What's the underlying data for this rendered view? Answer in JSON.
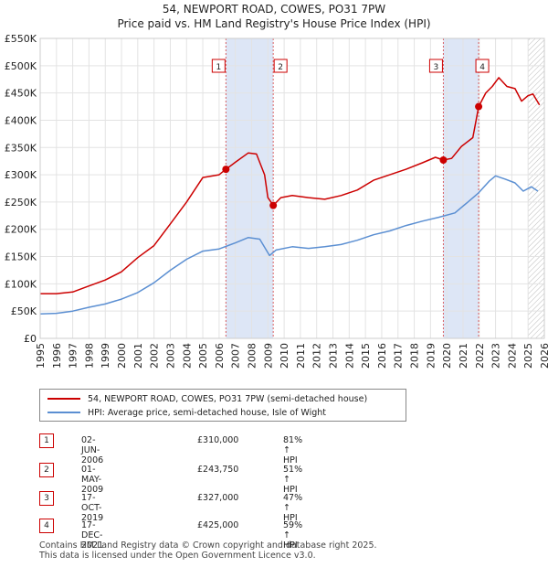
{
  "title": "54, NEWPORT ROAD, COWES, PO31 7PW",
  "subtitle": "Price paid vs. HM Land Registry's House Price Index (HPI)",
  "chart_data": {
    "type": "line",
    "title": "54, NEWPORT ROAD, COWES, PO31 7PW",
    "subtitle": "Price paid vs. HM Land Registry's House Price Index (HPI)",
    "xlim": [
      1995,
      2026
    ],
    "ylim": [
      0,
      550000
    ],
    "yticks": [
      0,
      50000,
      100000,
      150000,
      200000,
      250000,
      300000,
      350000,
      400000,
      450000,
      500000,
      550000
    ],
    "ytick_labels": [
      "£0",
      "£50K",
      "£100K",
      "£150K",
      "£200K",
      "£250K",
      "£300K",
      "£350K",
      "£400K",
      "£450K",
      "£500K",
      "£550K"
    ],
    "xticks": [
      1995,
      1996,
      1997,
      1998,
      1999,
      2000,
      2001,
      2002,
      2003,
      2004,
      2005,
      2006,
      2007,
      2008,
      2009,
      2010,
      2011,
      2012,
      2013,
      2014,
      2015,
      2016,
      2017,
      2018,
      2019,
      2020,
      2021,
      2022,
      2023,
      2024,
      2025,
      2026
    ],
    "grid": true,
    "series": [
      {
        "name": "54, NEWPORT ROAD, COWES, PO31 7PW (semi-detached house)",
        "color": "#cc0000",
        "points": [
          [
            1995.0,
            82000
          ],
          [
            1996.0,
            82000
          ],
          [
            1997.0,
            85000
          ],
          [
            1998.0,
            96000
          ],
          [
            1999.0,
            107000
          ],
          [
            2000.0,
            122000
          ],
          [
            2001.0,
            148000
          ],
          [
            2002.0,
            170000
          ],
          [
            2003.0,
            210000
          ],
          [
            2004.0,
            250000
          ],
          [
            2005.0,
            295000
          ],
          [
            2006.0,
            300000
          ],
          [
            2006.42,
            310000
          ],
          [
            2007.0,
            323000
          ],
          [
            2007.8,
            340000
          ],
          [
            2008.3,
            338000
          ],
          [
            2008.8,
            300000
          ],
          [
            2009.0,
            258000
          ],
          [
            2009.33,
            243750
          ],
          [
            2009.8,
            258000
          ],
          [
            2010.5,
            262000
          ],
          [
            2011.5,
            258000
          ],
          [
            2012.5,
            255000
          ],
          [
            2013.5,
            262000
          ],
          [
            2014.5,
            272000
          ],
          [
            2015.5,
            290000
          ],
          [
            2016.5,
            300000
          ],
          [
            2017.5,
            310000
          ],
          [
            2018.5,
            322000
          ],
          [
            2019.3,
            332000
          ],
          [
            2019.79,
            327000
          ],
          [
            2020.3,
            330000
          ],
          [
            2020.9,
            352000
          ],
          [
            2021.6,
            368000
          ],
          [
            2021.96,
            425000
          ],
          [
            2022.4,
            450000
          ],
          [
            2022.8,
            462000
          ],
          [
            2023.2,
            478000
          ],
          [
            2023.7,
            462000
          ],
          [
            2024.2,
            458000
          ],
          [
            2024.6,
            435000
          ],
          [
            2025.0,
            445000
          ],
          [
            2025.3,
            448000
          ],
          [
            2025.7,
            428000
          ]
        ]
      },
      {
        "name": "HPI: Average price, semi-detached house, Isle of Wight",
        "color": "#5b8fd2",
        "points": [
          [
            1995.0,
            45000
          ],
          [
            1996.0,
            46000
          ],
          [
            1997.0,
            50000
          ],
          [
            1998.0,
            57000
          ],
          [
            1999.0,
            63000
          ],
          [
            2000.0,
            72000
          ],
          [
            2001.0,
            84000
          ],
          [
            2002.0,
            102000
          ],
          [
            2003.0,
            125000
          ],
          [
            2004.0,
            145000
          ],
          [
            2005.0,
            160000
          ],
          [
            2006.0,
            164000
          ],
          [
            2007.0,
            175000
          ],
          [
            2007.8,
            185000
          ],
          [
            2008.5,
            182000
          ],
          [
            2009.1,
            152000
          ],
          [
            2009.5,
            162000
          ],
          [
            2010.5,
            168000
          ],
          [
            2011.5,
            165000
          ],
          [
            2012.5,
            168000
          ],
          [
            2013.5,
            172000
          ],
          [
            2014.5,
            180000
          ],
          [
            2015.5,
            190000
          ],
          [
            2016.5,
            197000
          ],
          [
            2017.5,
            207000
          ],
          [
            2018.5,
            215000
          ],
          [
            2019.5,
            222000
          ],
          [
            2020.5,
            230000
          ],
          [
            2021.3,
            250000
          ],
          [
            2021.96,
            267000
          ],
          [
            2022.6,
            288000
          ],
          [
            2023.0,
            298000
          ],
          [
            2023.6,
            292000
          ],
          [
            2024.2,
            285000
          ],
          [
            2024.7,
            270000
          ],
          [
            2025.2,
            278000
          ],
          [
            2025.6,
            270000
          ]
        ]
      }
    ],
    "sales": [
      {
        "label": "1",
        "date": "02-JUN-2006",
        "x": 2006.42,
        "price": 310000,
        "price_text": "£310,000",
        "hpi": "81% ↑ HPI"
      },
      {
        "label": "2",
        "date": "01-MAY-2009",
        "x": 2009.33,
        "price": 243750,
        "price_text": "£243,750",
        "hpi": "51% ↑ HPI"
      },
      {
        "label": "3",
        "date": "17-OCT-2019",
        "x": 2019.79,
        "price": 327000,
        "price_text": "£327,000",
        "hpi": "47% ↑ HPI"
      },
      {
        "label": "4",
        "date": "17-DEC-2021",
        "x": 2021.96,
        "price": 425000,
        "price_text": "£425,000",
        "hpi": "59% ↑ HPI"
      }
    ],
    "shaded_periods": [
      [
        2006.42,
        2009.33
      ],
      [
        2019.79,
        2021.96
      ]
    ],
    "hatch_from": 2025.0
  },
  "legend": {
    "property": "54, NEWPORT ROAD, COWES, PO31 7PW (semi-detached house)",
    "hpi": "HPI: Average price, semi-detached house, Isle of Wight"
  },
  "footer": {
    "line1": "Contains HM Land Registry data © Crown copyright and database right 2025.",
    "line2": "This data is licensed under the Open Government Licence v3.0."
  },
  "colors": {
    "property": "#cc0000",
    "hpi": "#5b8fd2",
    "shade": "#dde6f6",
    "grid": "#e3e3e3"
  }
}
